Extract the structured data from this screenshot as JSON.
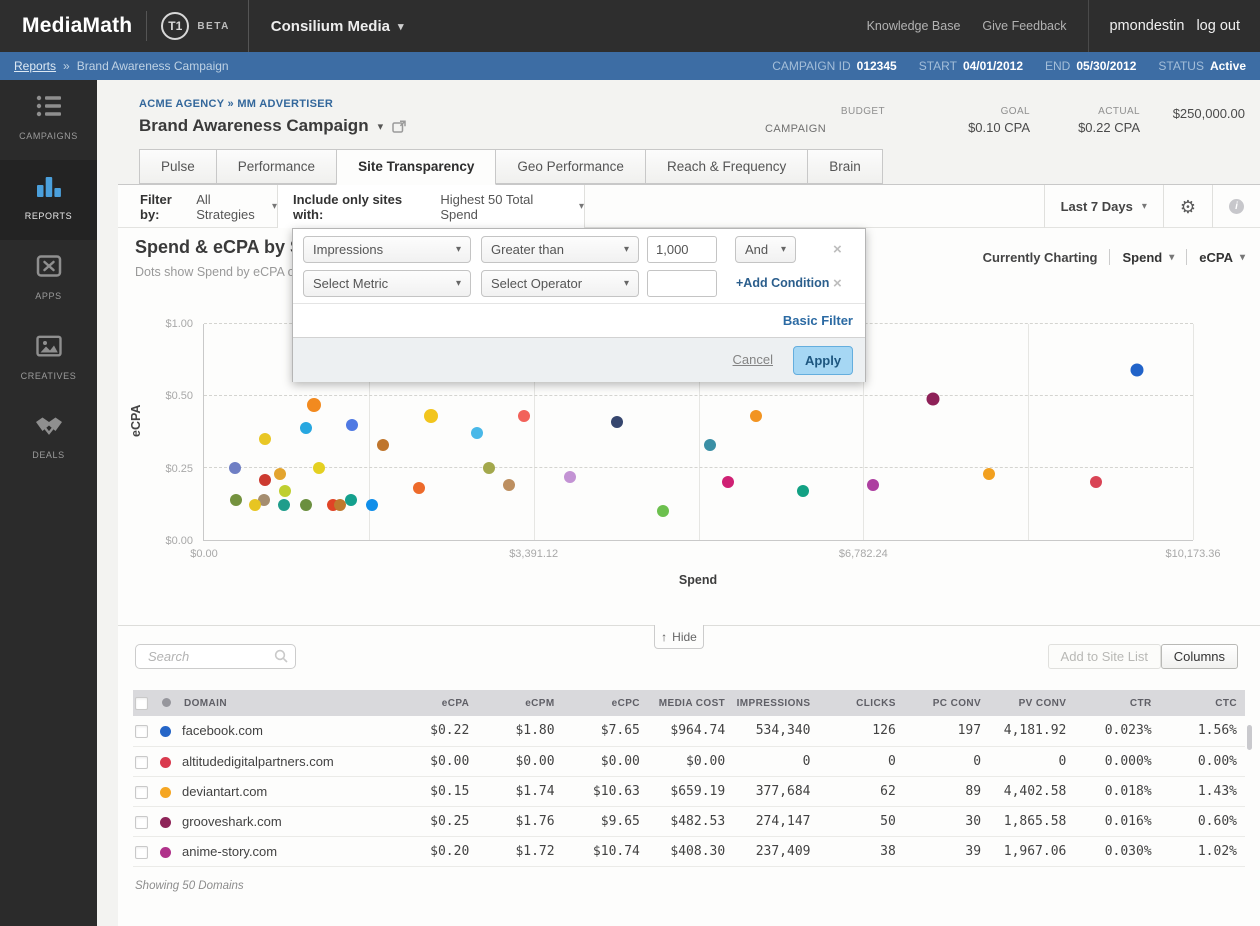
{
  "colors": {
    "topbar_bg": "#2e2e2e",
    "breadcrumb_bg": "#3d6da4",
    "link_blue": "#33679b",
    "apply_button_bg": "#a6d7f4",
    "active_icon_blue": "#4ba0dc"
  },
  "topbar": {
    "brand": "MediaMath",
    "logo_badge": "T1",
    "beta_label": "BETA",
    "org_name": "Consilium Media",
    "knowledge_base": "Knowledge Base",
    "give_feedback": "Give Feedback",
    "username": "pmondestin",
    "logout": "log out"
  },
  "breadcrumb_bar": {
    "section_link": "Reports",
    "separator": "»",
    "page_title": "Brand Awareness Campaign",
    "campaign_id_label": "CAMPAIGN ID",
    "campaign_id": "012345",
    "start_label": "START",
    "start": "04/01/2012",
    "end_label": "END",
    "end": "05/30/2012",
    "status_label": "STATUS",
    "status": "Active"
  },
  "sidebar": {
    "items": [
      {
        "label": "CAMPAIGNS",
        "icon": "list-icon",
        "active": false
      },
      {
        "label": "REPORTS",
        "icon": "bar-chart-icon",
        "active": true
      },
      {
        "label": "APPS",
        "icon": "apps-icon",
        "active": false
      },
      {
        "label": "CREATIVES",
        "icon": "image-icon",
        "active": false
      },
      {
        "label": "DEALS",
        "icon": "handshake-icon",
        "active": false
      }
    ]
  },
  "campaign_header": {
    "agency_breadcrumb": "ACME AGENCY » MM ADVERTISER",
    "title": "Brand Awareness Campaign",
    "entity_label": "CAMPAIGN",
    "budget_label": "BUDGET",
    "budget": "$250,000.00",
    "goal_label": "GOAL",
    "goal": "$0.10 CPA",
    "actual_label": "ACTUAL",
    "actual": "$0.22 CPA"
  },
  "tabs": {
    "items": [
      {
        "label": "Pulse"
      },
      {
        "label": "Performance"
      },
      {
        "label": "Site Transparency",
        "active": true
      },
      {
        "label": "Geo Performance"
      },
      {
        "label": "Reach & Frequency"
      },
      {
        "label": "Brain"
      }
    ]
  },
  "filter_bar": {
    "filter_by_label": "Filter by:",
    "filter_by_value": "All Strategies",
    "include_label": "Include only sites with:",
    "include_value": "Highest 50 Total Spend",
    "date_range": "Last 7 Days"
  },
  "filter_dialog": {
    "rows": [
      {
        "metric": "Impressions",
        "operator": "Greater than",
        "value": "1,000",
        "join": "And"
      },
      {
        "metric": "Select Metric",
        "operator": "Select Operator",
        "value": ""
      }
    ],
    "add_condition_label": "+Add Condition",
    "basic_filter_label": "Basic Filter",
    "cancel_label": "Cancel",
    "apply_label": "Apply",
    "close_symbol": "×"
  },
  "chart_ui": {
    "currently_charting_label": "Currently Charting",
    "metric_primary": "Spend",
    "metric_secondary": "eCPA"
  },
  "chart_data": {
    "type": "scatter",
    "title": "Spend & eCPA by S",
    "subtitle": "Dots show Spend by eCPA of",
    "xlabel": "Spend",
    "ylabel": "eCPA",
    "x_max": 10173.36,
    "x_gridline_count": 6,
    "x_ticks": [
      {
        "value": 0,
        "label": "$0.00"
      },
      {
        "value": 3391.12,
        "label": "$3,391.12"
      },
      {
        "value": 6782.24,
        "label": "$6,782.24"
      },
      {
        "value": 10173.36,
        "label": "$10,173.36"
      }
    ],
    "y_ticks": [
      {
        "value": 1.0,
        "label": "$1.00"
      },
      {
        "value": 0.5,
        "label": "$0.50"
      },
      {
        "value": 0.25,
        "label": "$0.25"
      },
      {
        "value": 0.0,
        "label": "$0.00"
      }
    ],
    "y_scale_stops": [
      [
        0,
        0
      ],
      [
        0.25,
        0.3333
      ],
      [
        0.5,
        0.6667
      ],
      [
        1,
        1
      ]
    ],
    "points": [
      {
        "spend": 1130,
        "ecpa": 0.47,
        "color": "#f28a1f",
        "size": 14
      },
      {
        "spend": 1520,
        "ecpa": 0.4,
        "color": "#4f79e3"
      },
      {
        "spend": 1050,
        "ecpa": 0.39,
        "color": "#27a7e0"
      },
      {
        "spend": 630,
        "ecpa": 0.35,
        "color": "#e9c725"
      },
      {
        "spend": 1840,
        "ecpa": 0.33,
        "color": "#bf752c"
      },
      {
        "spend": 320,
        "ecpa": 0.25,
        "color": "#6f7fc4"
      },
      {
        "spend": 1180,
        "ecpa": 0.25,
        "color": "#e4d021"
      },
      {
        "spend": 780,
        "ecpa": 0.23,
        "color": "#e3a42e"
      },
      {
        "spend": 630,
        "ecpa": 0.21,
        "color": "#cc3a30"
      },
      {
        "spend": 830,
        "ecpa": 0.17,
        "color": "#bfcf30"
      },
      {
        "spend": 330,
        "ecpa": 0.14,
        "color": "#74923e"
      },
      {
        "spend": 620,
        "ecpa": 0.14,
        "color": "#a58d6f"
      },
      {
        "spend": 520,
        "ecpa": 0.12,
        "color": "#e7c522"
      },
      {
        "spend": 820,
        "ecpa": 0.12,
        "color": "#1f9d8b"
      },
      {
        "spend": 1050,
        "ecpa": 0.12,
        "color": "#6b8f3f"
      },
      {
        "spend": 1330,
        "ecpa": 0.12,
        "color": "#e04426"
      },
      {
        "spend": 1400,
        "ecpa": 0.12,
        "color": "#bf7a2e"
      },
      {
        "spend": 1510,
        "ecpa": 0.14,
        "color": "#14a08d"
      },
      {
        "spend": 1730,
        "ecpa": 0.12,
        "color": "#0f8ee9"
      },
      {
        "spend": 2210,
        "ecpa": 0.18,
        "color": "#ed6a2a"
      },
      {
        "spend": 2330,
        "ecpa": 0.43,
        "color": "#f2c51d",
        "size": 14
      },
      {
        "spend": 2810,
        "ecpa": 0.37,
        "color": "#49b8e8"
      },
      {
        "spend": 2930,
        "ecpa": 0.25,
        "color": "#a3a84c"
      },
      {
        "spend": 3140,
        "ecpa": 0.19,
        "color": "#bd8f60"
      },
      {
        "spend": 3290,
        "ecpa": 0.43,
        "color": "#f2625a"
      },
      {
        "spend": 4250,
        "ecpa": 0.41,
        "color": "#36466e"
      },
      {
        "spend": 5680,
        "ecpa": 0.43,
        "color": "#f29422"
      },
      {
        "spend": 5200,
        "ecpa": 0.33,
        "color": "#3a8fa5"
      },
      {
        "spend": 3760,
        "ecpa": 0.22,
        "color": "#c393d4"
      },
      {
        "spend": 5390,
        "ecpa": 0.2,
        "color": "#cf2174"
      },
      {
        "spend": 6160,
        "ecpa": 0.17,
        "color": "#12a183"
      },
      {
        "spend": 4720,
        "ecpa": 0.1,
        "color": "#6cc04e"
      },
      {
        "spend": 6880,
        "ecpa": 0.19,
        "color": "#ad3fa0"
      },
      {
        "spend": 7500,
        "ecpa": 0.49,
        "color": "#8e2158",
        "size": 13
      },
      {
        "spend": 9600,
        "ecpa": 0.68,
        "color": "#2163c9",
        "size": 13
      },
      {
        "spend": 8070,
        "ecpa": 0.23,
        "color": "#f2a01f"
      },
      {
        "spend": 9180,
        "ecpa": 0.2,
        "color": "#d94455"
      }
    ]
  },
  "hide_button": {
    "label": "Hide"
  },
  "table_toolbar": {
    "search_placeholder": "Search",
    "add_to_site_list_label": "Add to Site List",
    "columns_label": "Columns"
  },
  "table": {
    "columns": [
      "DOMAIN",
      "eCPA",
      "eCPM",
      "eCPC",
      "MEDIA COST",
      "IMPRESSIONS",
      "CLICKS",
      "PC CONV",
      "PV CONV",
      "CTR",
      "CTC"
    ],
    "rows": [
      {
        "dot_color": "#2565c7",
        "domain": "facebook.com",
        "values": [
          "$0.22",
          "$1.80",
          "$7.65",
          "$964.74",
          "534,340",
          "126",
          "197",
          "4,181.92",
          "0.023%",
          "1.56%"
        ]
      },
      {
        "dot_color": "#d93a4e",
        "domain": "altitudedigitalpartners.com",
        "values": [
          "$0.00",
          "$0.00",
          "$0.00",
          "$0.00",
          "0",
          "0",
          "0",
          "0",
          "0.000%",
          "0.00%"
        ]
      },
      {
        "dot_color": "#f5a623",
        "domain": "deviantart.com",
        "values": [
          "$0.15",
          "$1.74",
          "$10.63",
          "$659.19",
          "377,684",
          "62",
          "89",
          "4,402.58",
          "0.018%",
          "1.43%"
        ]
      },
      {
        "dot_color": "#8e2458",
        "domain": "grooveshark.com",
        "values": [
          "$0.25",
          "$1.76",
          "$9.65",
          "$482.53",
          "274,147",
          "50",
          "30",
          "1,865.58",
          "0.016%",
          "0.60%"
        ]
      },
      {
        "dot_color": "#b0328a",
        "domain": "anime-story.com",
        "values": [
          "$0.20",
          "$1.72",
          "$10.74",
          "$408.30",
          "237,409",
          "38",
          "39",
          "1,967.06",
          "0.030%",
          "1.02%"
        ]
      }
    ]
  },
  "footer_note": "Showing 50 Domains"
}
